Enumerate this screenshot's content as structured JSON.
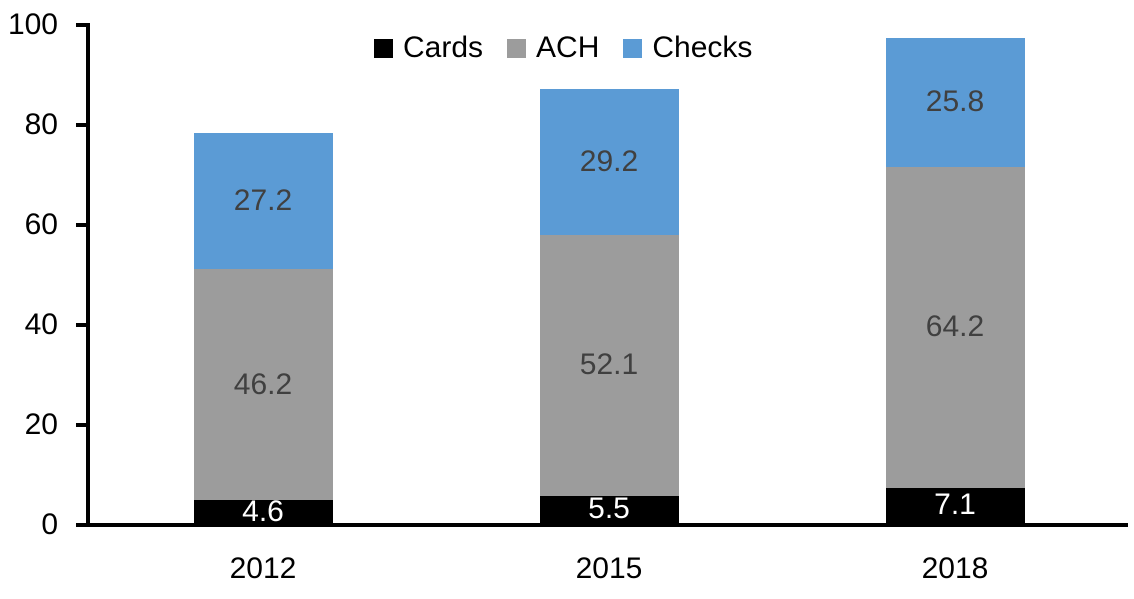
{
  "chart_data": {
    "type": "bar",
    "stacked": true,
    "title": "",
    "xlabel": "",
    "ylabel": "",
    "categories": [
      "2012",
      "2015",
      "2018"
    ],
    "series": [
      {
        "name": "Cards",
        "color": "#000000",
        "label_color": "#FFFFFF",
        "values": [
          4.6,
          5.5,
          7.1
        ]
      },
      {
        "name": "ACH",
        "color": "#9C9C9C",
        "label_color": "#404040",
        "values": [
          46.2,
          52.1,
          64.2
        ]
      },
      {
        "name": "Checks",
        "color": "#5B9BD5",
        "label_color": "#404040",
        "values": [
          27.2,
          29.2,
          25.8
        ]
      }
    ],
    "ylim": [
      0,
      100
    ],
    "yticks": [
      0,
      20,
      40,
      60,
      80,
      100
    ],
    "grid": false,
    "legend_position": "top-center",
    "axis_color": "#000000",
    "background_color": "#FFFFFF"
  }
}
